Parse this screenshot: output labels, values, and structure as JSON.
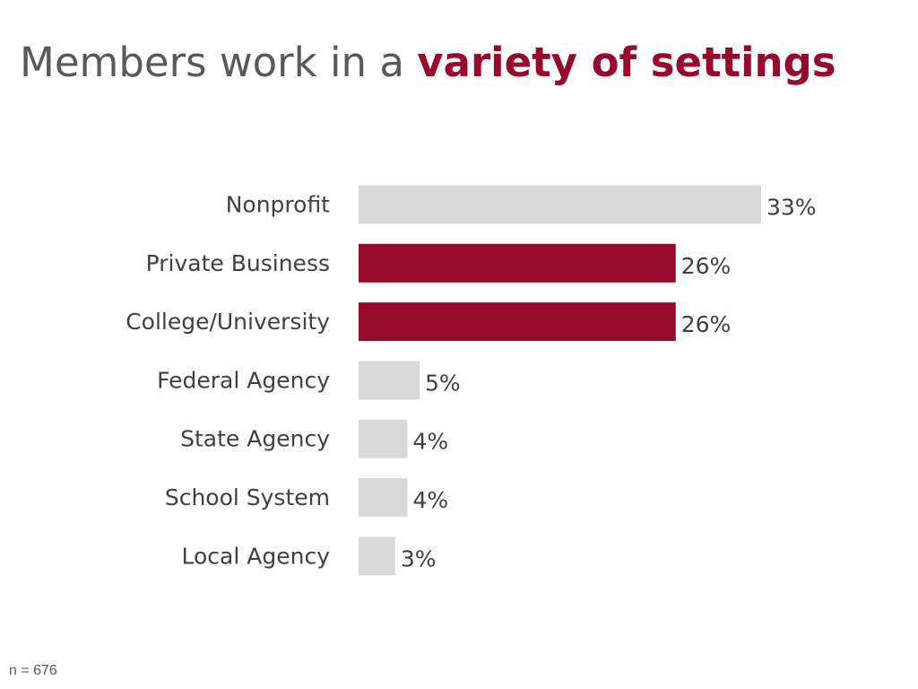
{
  "title": {
    "prefix": "Members work in a ",
    "emphasis": "variety of settings"
  },
  "colors": {
    "title_text": "#595959",
    "accent": "#960a2c",
    "bar_default": "#d9d9d9",
    "label_text": "#404040"
  },
  "footnote": "n = 676",
  "chart_data": {
    "type": "bar",
    "orientation": "horizontal",
    "categories": [
      "Nonprofit",
      "Private Business",
      "College/University",
      "Federal Agency",
      "State Agency",
      "School System",
      "Local Agency"
    ],
    "values": [
      33,
      26,
      26,
      5,
      4,
      4,
      3
    ],
    "value_labels": [
      "33%",
      "26%",
      "26%",
      "5%",
      "4%",
      "4%",
      "3%"
    ],
    "highlighted": [
      "Private Business",
      "College/University"
    ],
    "xlim": [
      0,
      33
    ],
    "grid": false,
    "legend": "none"
  }
}
